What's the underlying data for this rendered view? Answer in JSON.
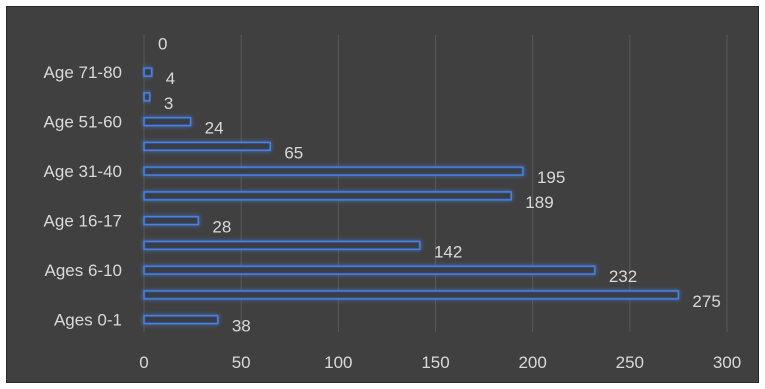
{
  "chart_data": {
    "type": "bar",
    "orientation": "horizontal",
    "categories": [
      "Ages 0-1",
      "",
      "Ages 6-10",
      "",
      "Age 16-17",
      "",
      "Age 31-40",
      "",
      "Age 51-60",
      "",
      "Age 71-80",
      ""
    ],
    "values": [
      38,
      275,
      232,
      142,
      28,
      189,
      195,
      65,
      24,
      3,
      4,
      0
    ],
    "x_ticks": [
      "0",
      "50",
      "100",
      "150",
      "200",
      "250",
      "300"
    ],
    "xlim": [
      0,
      300
    ],
    "grid": true,
    "legend": "none",
    "colors": {
      "background": "#404040",
      "bar_fill": "#2f5597",
      "bar_edge": "#4f81d8",
      "glow": "#3a6fd8",
      "text": "#d9d9d9",
      "grid": "#595959"
    }
  }
}
